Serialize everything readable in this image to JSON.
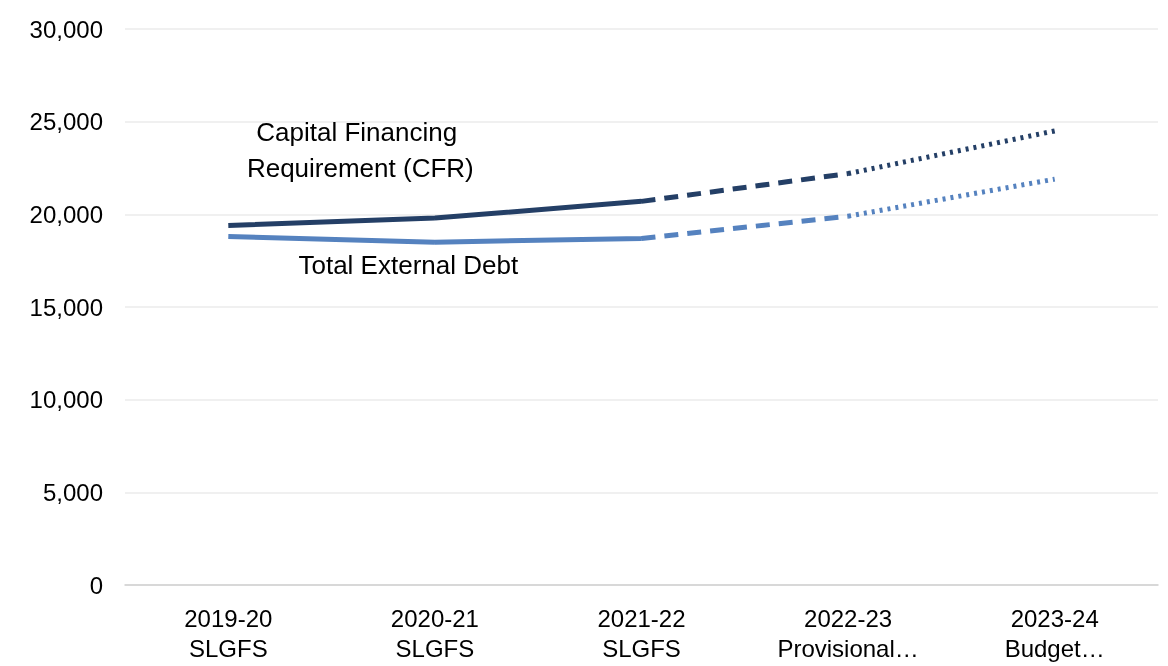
{
  "chart_data": {
    "type": "line",
    "categories": [
      "2019-20\nSLGFS",
      "2020-21\nSLGFS",
      "2021-22\nSLGFS",
      "2022-23\nProvisional…",
      "2023-24\nBudget…"
    ],
    "series": [
      {
        "name": "Capital Financing Requirement (CFR)",
        "color": "#243f66",
        "line_style": [
          "solid",
          "solid",
          "dashed",
          "dotted"
        ],
        "values": [
          19400,
          19800,
          20700,
          22200,
          24500
        ]
      },
      {
        "name": "Total External Debt",
        "color": "#5582bf",
        "line_style": [
          "solid",
          "solid",
          "dashed",
          "dotted"
        ],
        "values": [
          18800,
          18500,
          18700,
          19900,
          21900
        ]
      }
    ],
    "ylim": [
      0,
      30000
    ],
    "yticks": [
      0,
      {
        "value": 5000,
        "label": "5,000"
      },
      {
        "value": 10000,
        "label": "10,000"
      },
      {
        "value": 15000,
        "label": "15,000"
      },
      {
        "value": 20000,
        "label": "20,000"
      },
      {
        "value": 25000,
        "label": "25,000"
      },
      {
        "value": 30000,
        "label": "30,000"
      }
    ],
    "grid": "y",
    "legend": false,
    "marker": "none"
  }
}
